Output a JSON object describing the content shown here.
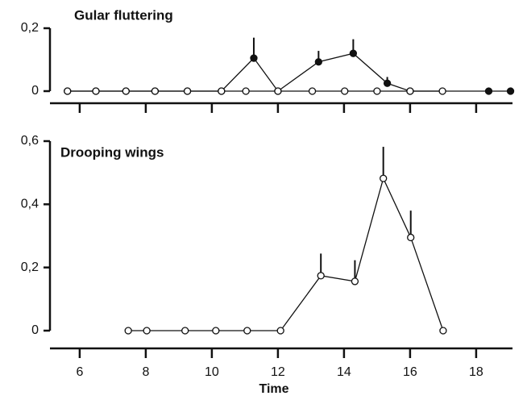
{
  "chart_data": [
    {
      "type": "line",
      "title": "Gular fluttering",
      "xlim": [
        5.1,
        19.1
      ],
      "ylim": [
        0,
        0.2
      ],
      "yticks": [
        0,
        {
          "value": 0.2,
          "label": "0,2"
        }
      ],
      "series": [
        {
          "color": "#111111",
          "x": [
            5.63,
            6.49,
            7.4,
            8.28,
            9.26,
            10.29,
            11.27,
            12.0,
            13.23,
            14.28,
            15.31,
            16.0,
            18.38,
            19.04
          ],
          "values": [
            0,
            0,
            0,
            0,
            0,
            0,
            0.105,
            0,
            0.093,
            0.12,
            0.025,
            0,
            0,
            0
          ],
          "errors": [
            null,
            null,
            null,
            null,
            null,
            null,
            0.065,
            null,
            0.035,
            0.045,
            0.02,
            null,
            null,
            null
          ]
        },
        {
          "color": "#ffffff",
          "x": [
            5.63,
            6.49,
            7.4,
            8.28,
            9.26,
            10.29,
            11.03,
            12.0,
            13.04,
            14.02,
            15.0,
            16.0,
            16.98
          ],
          "values": [
            0,
            0,
            0,
            0,
            0,
            0,
            0,
            0,
            0,
            0,
            0,
            0,
            0
          ],
          "errors": [
            null,
            null,
            null,
            null,
            null,
            null,
            null,
            null,
            null,
            null,
            null,
            null,
            null
          ]
        }
      ]
    },
    {
      "type": "line",
      "title": "Drooping wings",
      "xlabel": "Time",
      "xlim": [
        5.1,
        19.1
      ],
      "xticks": [
        6,
        8,
        10,
        12,
        14,
        16,
        18
      ],
      "ylim": [
        0,
        0.6
      ],
      "yticks": [
        0,
        {
          "value": 0.2,
          "label": "0,2"
        },
        {
          "value": 0.4,
          "label": "0,4"
        },
        {
          "value": 0.6,
          "label": "0,6"
        }
      ],
      "series": [
        {
          "color": "#ffffff",
          "x": [
            7.47,
            8.03,
            9.19,
            10.12,
            11.07,
            12.08,
            13.3,
            14.33,
            15.19,
            16.02,
            17.0
          ],
          "values": [
            0,
            0,
            0,
            0,
            0,
            0,
            0.174,
            0.156,
            0.482,
            0.295,
            0
          ],
          "errors": [
            null,
            null,
            null,
            null,
            null,
            null,
            0.07,
            0.067,
            0.1,
            0.085,
            null
          ]
        }
      ]
    }
  ]
}
